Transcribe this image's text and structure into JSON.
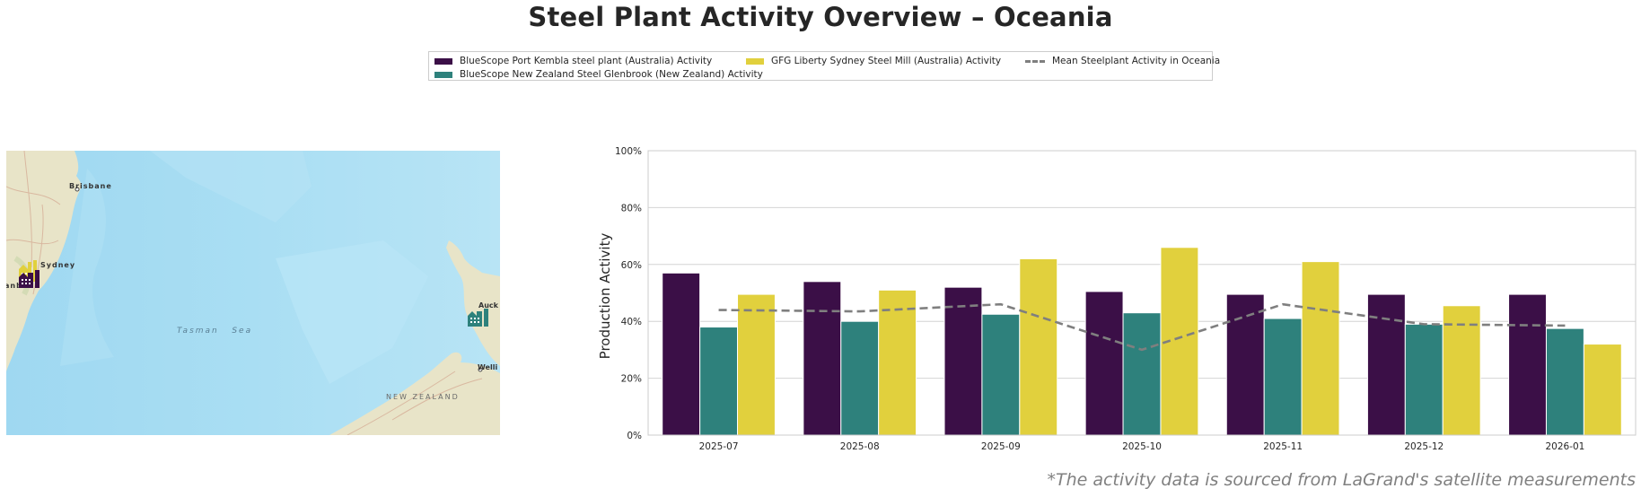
{
  "title": "Steel Plant Activity Overview – Oceania",
  "footnote": "*The activity data is sourced from LaGrand's satellite measurements",
  "legend": {
    "items": [
      {
        "label": "BlueScope Port Kembla steel plant (Australia) Activity",
        "color": "#3b0f47",
        "kind": "bar"
      },
      {
        "label": "BlueScope New Zealand Steel Glenbrook (New Zealand) Activity",
        "color": "#2e817c",
        "kind": "bar"
      },
      {
        "label": "GFG Liberty Sydney Steel Mill (Australia) Activity",
        "color": "#e1d03d",
        "kind": "bar"
      },
      {
        "label": "Mean Steelplant Activity in Oceania",
        "color": "#7f7f7f",
        "kind": "dashed-line"
      }
    ]
  },
  "map": {
    "labels": {
      "brisbane": "Brisbane",
      "sydney": "Sydney",
      "canberra_partial": "anb",
      "tasman_sea": "Tasman   Sea",
      "auckland_partial": "Auck",
      "wellington_partial": "Welli",
      "new_zealand": "NEW ZEALAND"
    },
    "markers": [
      {
        "name": "BlueScope Port Kembla steel plant",
        "color": "#3b0f47",
        "icon": "factory-icon"
      },
      {
        "name": "GFG Liberty Sydney Steel Mill",
        "color": "#e1d03d",
        "icon": "factory-icon"
      },
      {
        "name": "BlueScope New Zealand Steel Glenbrook",
        "color": "#2e817c",
        "icon": "factory-icon"
      }
    ]
  },
  "chart_data": {
    "type": "bar",
    "title": "",
    "xlabel": "",
    "ylabel": "Production Activity",
    "ylim": [
      0,
      100
    ],
    "yticks": [
      0,
      20,
      40,
      60,
      80,
      100
    ],
    "ytick_labels": [
      "0%",
      "20%",
      "40%",
      "60%",
      "80%",
      "100%"
    ],
    "grid": "horizontal",
    "legend_position": "top-center",
    "categories": [
      "2025-07",
      "2025-08",
      "2025-09",
      "2025-10",
      "2025-11",
      "2025-12",
      "2026-01"
    ],
    "series": [
      {
        "name": "BlueScope Port Kembla steel plant (Australia) Activity",
        "type": "bar",
        "color": "#3b0f47",
        "values": [
          57,
          54,
          52,
          50.5,
          49.5,
          49.5,
          49.5
        ]
      },
      {
        "name": "BlueScope New Zealand Steel Glenbrook (New Zealand) Activity",
        "type": "bar",
        "color": "#2e817c",
        "values": [
          38,
          40,
          42.5,
          43,
          41,
          39,
          37.5
        ]
      },
      {
        "name": "GFG Liberty Sydney Steel Mill (Australia) Activity",
        "type": "bar",
        "color": "#e1d03d",
        "values": [
          49.5,
          51,
          62,
          66,
          61,
          45.5,
          32
        ]
      },
      {
        "name": "Mean Steelplant Activity in Oceania",
        "type": "line",
        "style": "dashed",
        "color": "#7f7f7f",
        "values": [
          44,
          43.5,
          46,
          30,
          46,
          39,
          38.5
        ]
      }
    ]
  }
}
